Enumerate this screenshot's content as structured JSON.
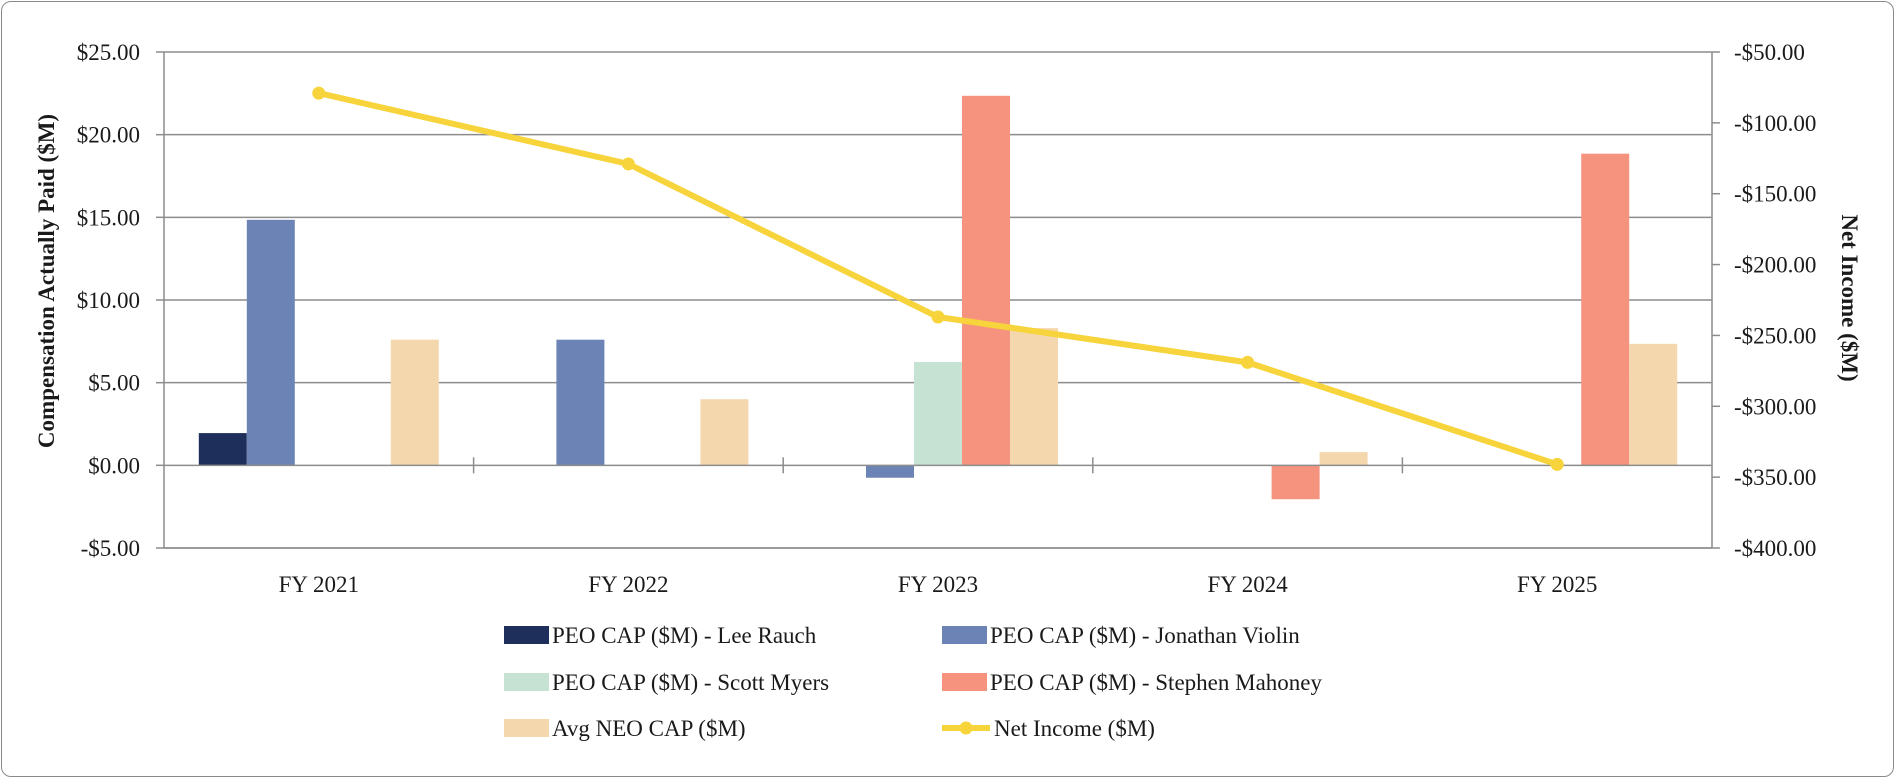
{
  "chart_data": {
    "type": "bar",
    "categories": [
      "FY 2021",
      "FY 2022",
      "FY 2023",
      "FY 2024",
      "FY 2025"
    ],
    "ylabel": "Compensation Actually Paid ($M)",
    "y2label": "Net Income ($M)",
    "ylim": [
      -5,
      25
    ],
    "y2lim": [
      -400,
      -50
    ],
    "y_ticks": [
      {
        "value": 25,
        "label": "$25.00"
      },
      {
        "value": 20,
        "label": "$20.00"
      },
      {
        "value": 15,
        "label": "$15.00"
      },
      {
        "value": 10,
        "label": "$10.00"
      },
      {
        "value": 5,
        "label": "$5.00"
      },
      {
        "value": 0,
        "label": "$0.00"
      },
      {
        "value": -5,
        "label": "-$5.00"
      }
    ],
    "y2_ticks": [
      {
        "value": -50,
        "label": "-$50.00"
      },
      {
        "value": -100,
        "label": "-$100.00"
      },
      {
        "value": -150,
        "label": "-$150.00"
      },
      {
        "value": -200,
        "label": "-$200.00"
      },
      {
        "value": -250,
        "label": "-$250.00"
      },
      {
        "value": -300,
        "label": "-$300.00"
      },
      {
        "value": -350,
        "label": "-$350.00"
      },
      {
        "value": -400,
        "label": "-$400.00"
      }
    ],
    "grid": true,
    "legend_position": "bottom",
    "series": [
      {
        "name": "PEO CAP ($M) - Lee Rauch",
        "type": "bar",
        "color": "#1f2f5c",
        "values": [
          1.95,
          null,
          null,
          null,
          null
        ]
      },
      {
        "name": "PEO CAP ($M) - Jonathan Violin",
        "type": "bar",
        "color": "#6c84b5",
        "values": [
          14.85,
          7.6,
          -0.75,
          null,
          null
        ]
      },
      {
        "name": "PEO CAP ($M) - Scott Myers",
        "type": "bar",
        "color": "#c5e2d2",
        "values": [
          null,
          null,
          6.25,
          null,
          null
        ]
      },
      {
        "name": "PEO CAP ($M) - Stephen Mahoney",
        "type": "bar",
        "color": "#f5937e",
        "values": [
          null,
          null,
          22.35,
          -2.05,
          18.85
        ]
      },
      {
        "name": "Avg NEO CAP ($M)",
        "type": "bar",
        "color": "#f4d7ad",
        "values": [
          7.6,
          4.0,
          8.3,
          0.8,
          7.35
        ]
      },
      {
        "name": "Net Income ($M)",
        "type": "line",
        "axis": "right",
        "color": "#f7d43b",
        "values": [
          -79,
          -129,
          -237,
          -269,
          -341
        ]
      }
    ]
  }
}
